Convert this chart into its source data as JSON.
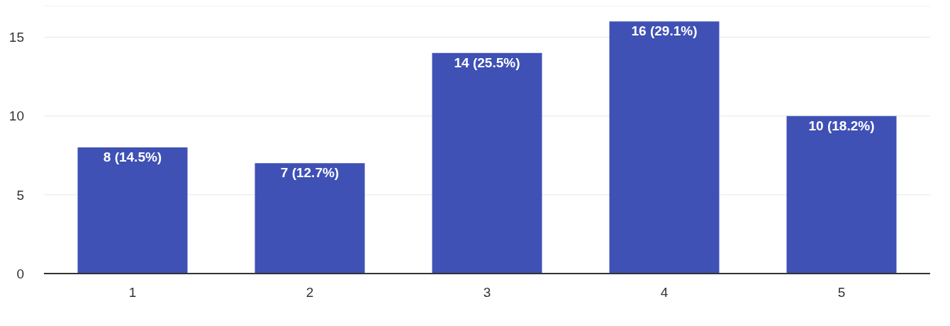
{
  "chart_data": {
    "type": "bar",
    "categories": [
      "1",
      "2",
      "3",
      "4",
      "5"
    ],
    "values": [
      8,
      7,
      14,
      16,
      10
    ],
    "value_labels": [
      "8 (14.5%)",
      "7 (12.7%)",
      "14 (25.5%)",
      "16 (29.1%)",
      "10 (18.2%)"
    ],
    "color": "#3f51b5",
    "ylim": [
      0,
      17
    ],
    "yticks": [
      0,
      5,
      10,
      15
    ],
    "grid": "y",
    "legend": false
  }
}
